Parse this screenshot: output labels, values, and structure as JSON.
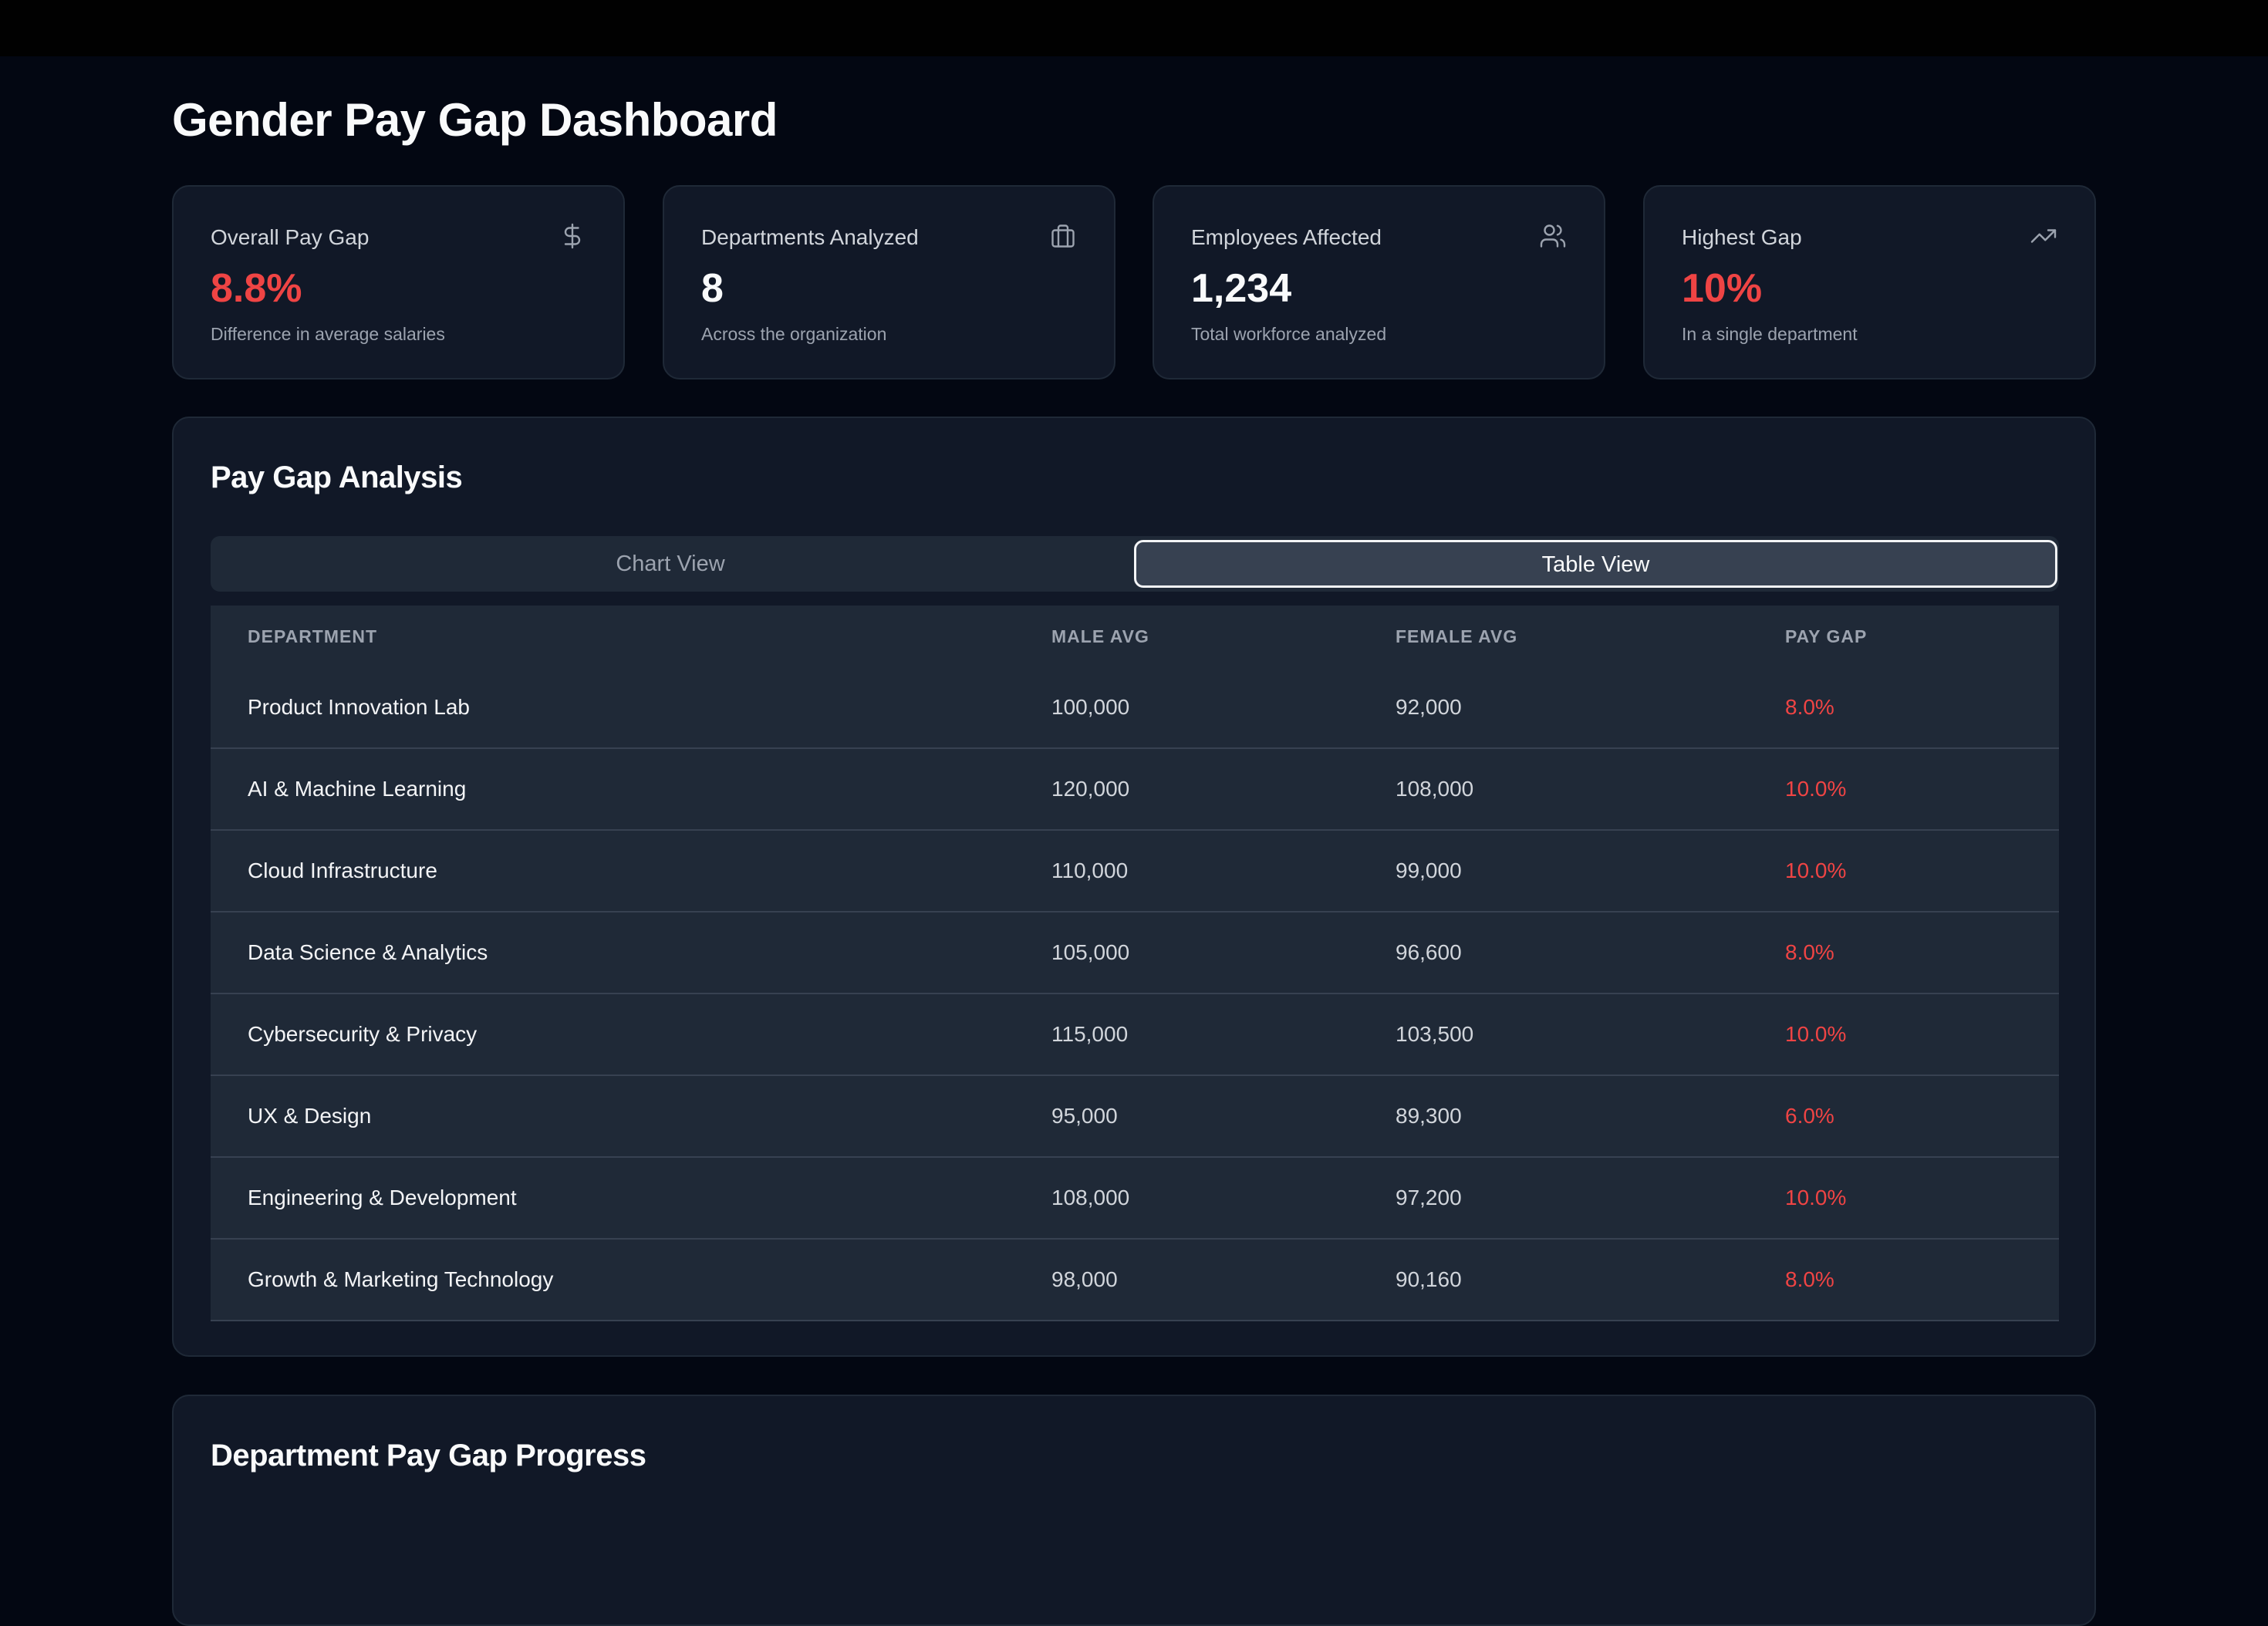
{
  "page": {
    "title": "Gender Pay Gap Dashboard"
  },
  "stats": [
    {
      "label": "Overall Pay Gap",
      "value": "8.8%",
      "desc": "Difference in average salaries",
      "icon": "dollar-icon",
      "value_color": "#ef4444"
    },
    {
      "label": "Departments Analyzed",
      "value": "8",
      "desc": "Across the organization",
      "icon": "briefcase-icon",
      "value_color": "#f9fafb"
    },
    {
      "label": "Employees Affected",
      "value": "1,234",
      "desc": "Total workforce analyzed",
      "icon": "users-icon",
      "value_color": "#f9fafb"
    },
    {
      "label": "Highest Gap",
      "value": "10%",
      "desc": "In a single department",
      "icon": "trending-up-icon",
      "value_color": "#ef4444"
    }
  ],
  "analysis": {
    "title": "Pay Gap Analysis",
    "tabs": {
      "chart": "Chart View",
      "table": "Table View",
      "active": "table"
    },
    "columns": {
      "department": "DEPARTMENT",
      "male": "MALE AVG",
      "female": "FEMALE AVG",
      "gap": "PAY GAP"
    },
    "rows": [
      {
        "department": "Product Innovation Lab",
        "male": "100,000",
        "female": "92,000",
        "gap": "8.0%"
      },
      {
        "department": "AI & Machine Learning",
        "male": "120,000",
        "female": "108,000",
        "gap": "10.0%"
      },
      {
        "department": "Cloud Infrastructure",
        "male": "110,000",
        "female": "99,000",
        "gap": "10.0%"
      },
      {
        "department": "Data Science & Analytics",
        "male": "105,000",
        "female": "96,600",
        "gap": "8.0%"
      },
      {
        "department": "Cybersecurity & Privacy",
        "male": "115,000",
        "female": "103,500",
        "gap": "10.0%"
      },
      {
        "department": "UX & Design",
        "male": "95,000",
        "female": "89,300",
        "gap": "6.0%"
      },
      {
        "department": "Engineering & Development",
        "male": "108,000",
        "female": "97,200",
        "gap": "10.0%"
      },
      {
        "department": "Growth & Marketing Technology",
        "male": "98,000",
        "female": "90,160",
        "gap": "8.0%"
      }
    ]
  },
  "progress": {
    "title": "Department Pay Gap Progress"
  },
  "colors": {
    "background": "#030712",
    "card": "#111827",
    "accent_red": "#ef4444"
  }
}
